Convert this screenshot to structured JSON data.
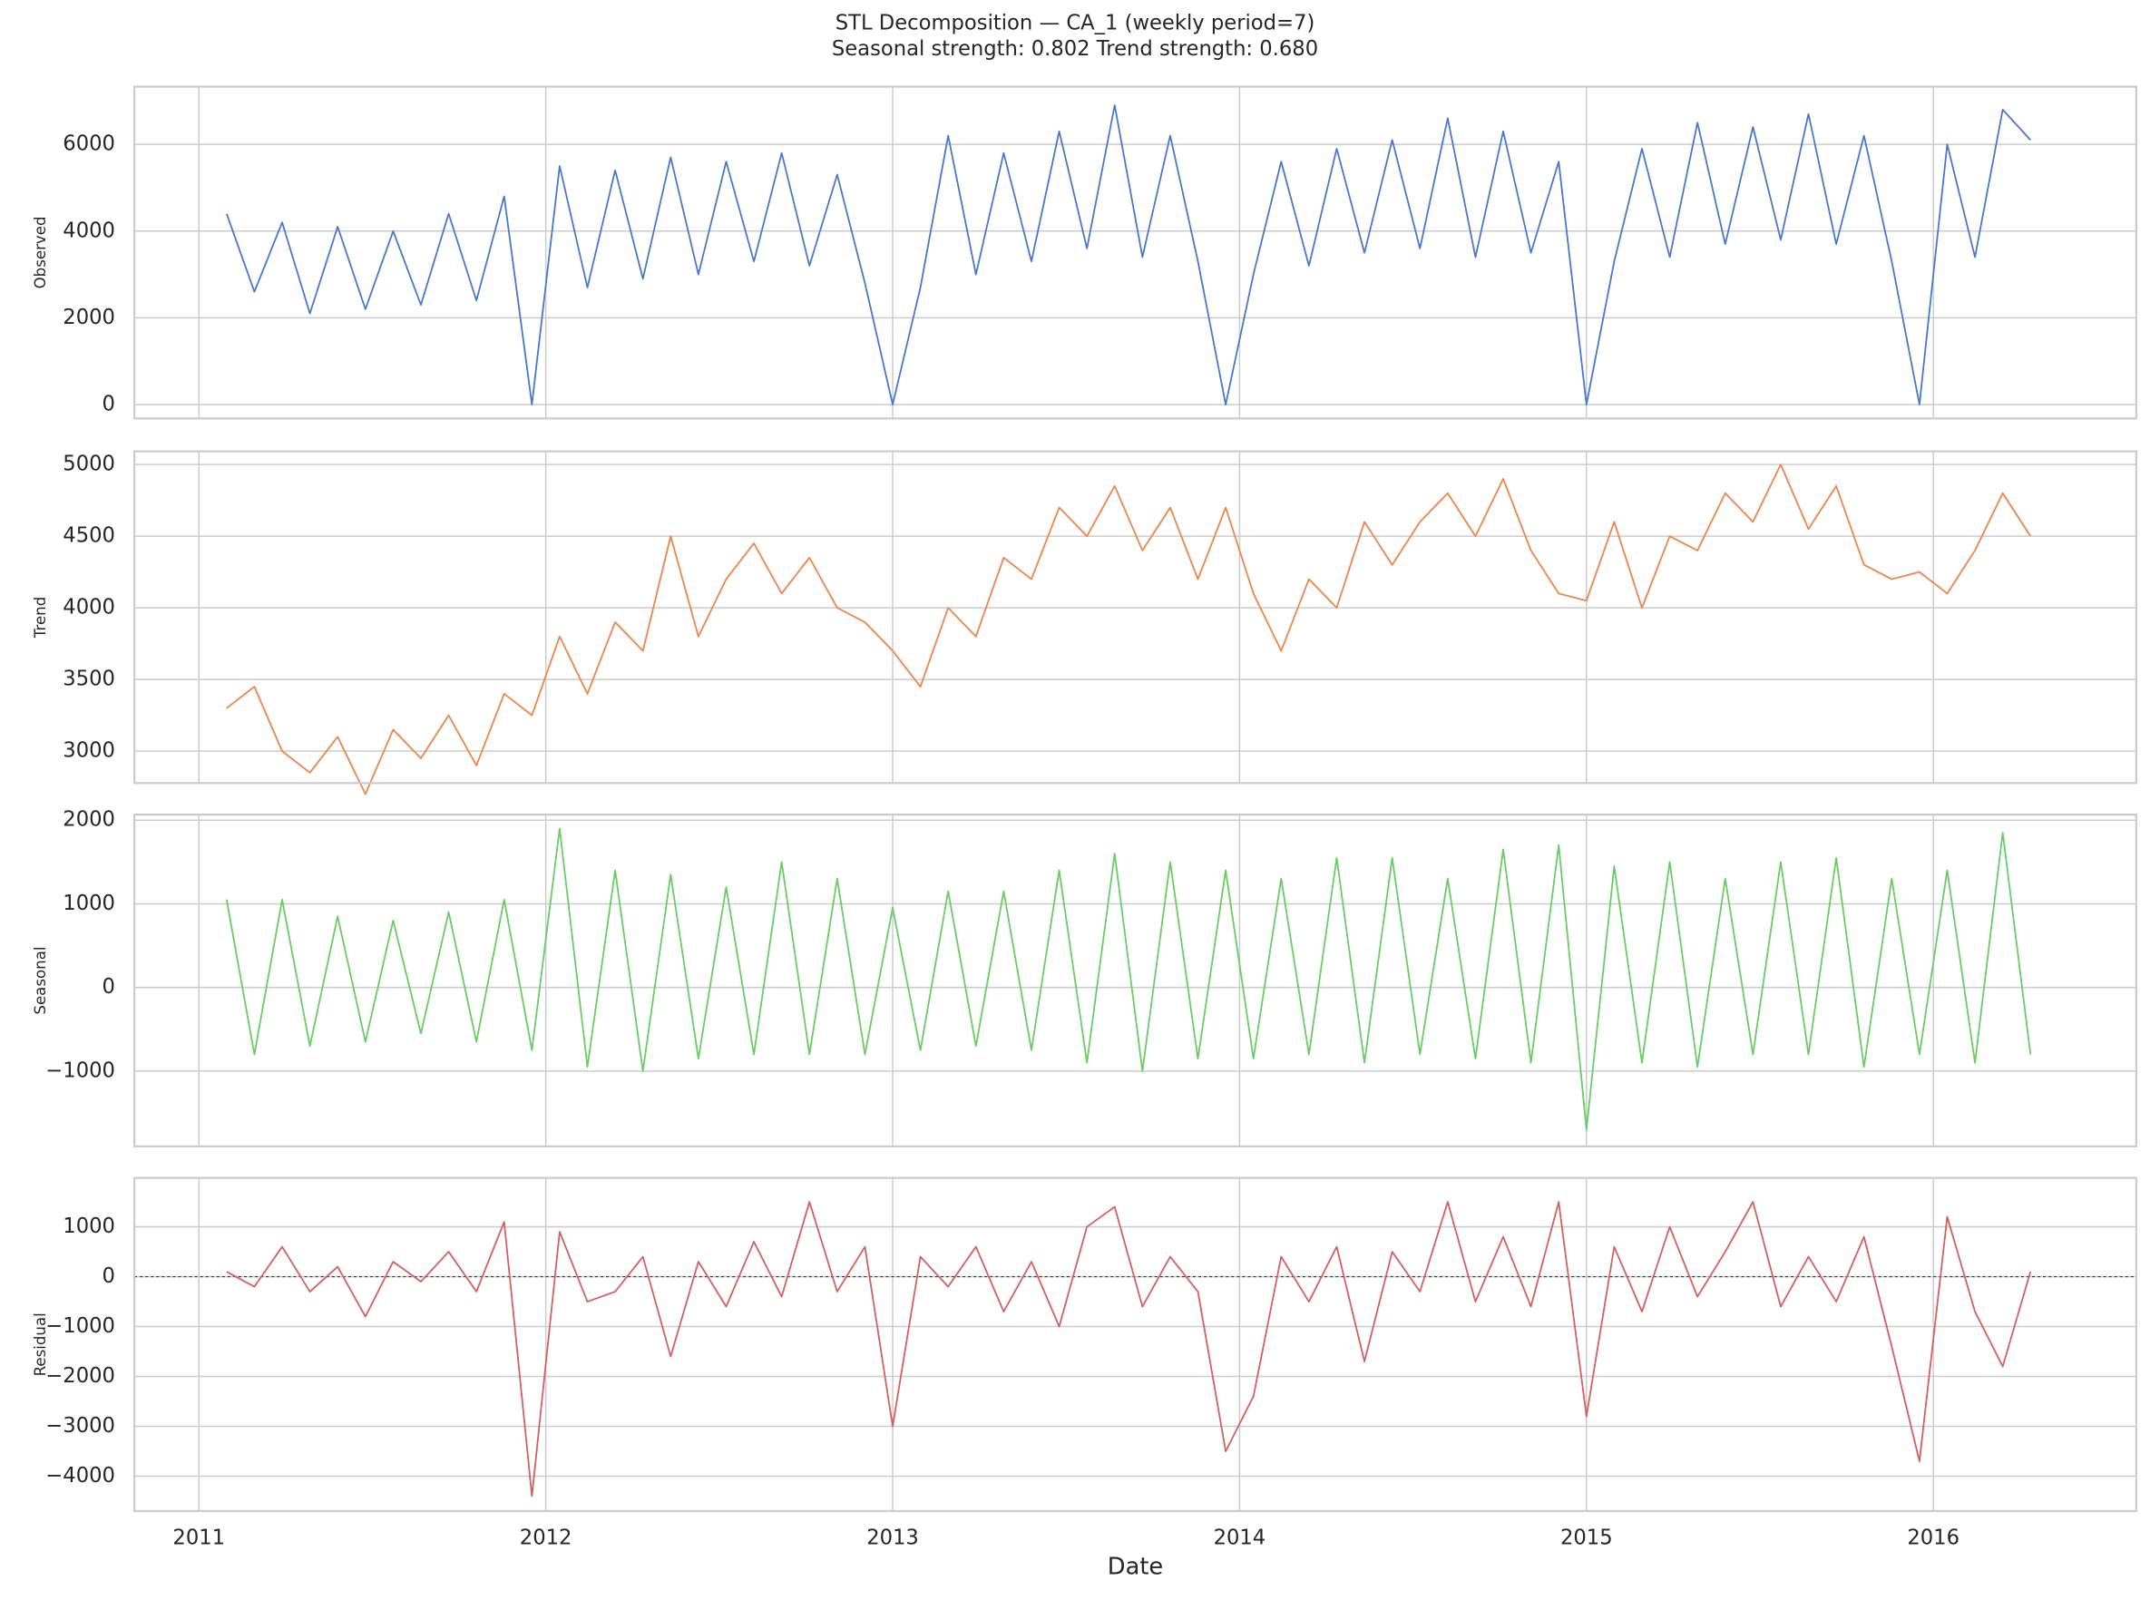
{
  "title": "STL Decomposition — CA_1 (weekly period=7)",
  "subtitle": "Seasonal strength: 0.802   Trend strength: 0.680",
  "chart_data": [
    {
      "type": "line",
      "ylabel": "Observed",
      "grid": true,
      "xlim": [
        2010.814,
        2016.585
      ],
      "xticks": [
        2011,
        2012,
        2013,
        2014,
        2015,
        2016
      ],
      "ylim": [
        -320,
        7330
      ],
      "yticks": [
        0,
        2000,
        4000,
        6000
      ],
      "x": [
        2011.08,
        2011.16,
        2011.24,
        2011.32,
        2011.4,
        2011.48,
        2011.56,
        2011.64,
        2011.72,
        2011.8,
        2011.88,
        2011.96,
        2012.04,
        2012.12,
        2012.2,
        2012.28,
        2012.36,
        2012.44,
        2012.52,
        2012.6,
        2012.68,
        2012.76,
        2012.84,
        2012.92,
        2013,
        2013.08,
        2013.16,
        2013.24,
        2013.32,
        2013.4,
        2013.48,
        2013.56,
        2013.64,
        2013.72,
        2013.8,
        2013.88,
        2013.96,
        2014.04,
        2014.12,
        2014.2,
        2014.28,
        2014.36,
        2014.44,
        2014.52,
        2014.6,
        2014.68,
        2014.76,
        2014.84,
        2014.92,
        2015,
        2015.08,
        2015.16,
        2015.24,
        2015.32,
        2015.4,
        2015.48,
        2015.56,
        2015.64,
        2015.72,
        2015.8,
        2015.88,
        2015.96,
        2016.04,
        2016.12,
        2016.2,
        2016.28
      ],
      "series": [
        {
          "name": "Observed",
          "color": "#4878d0",
          "values": [
            4400,
            2600,
            4200,
            2100,
            4100,
            2200,
            4000,
            2300,
            4400,
            2400,
            4800,
            0,
            5500,
            2700,
            5400,
            2900,
            5700,
            3000,
            5600,
            3300,
            5800,
            3200,
            5300,
            2800,
            0,
            2700,
            6200,
            3000,
            5800,
            3300,
            6300,
            3600,
            6900,
            3400,
            6200,
            3300,
            0,
            3000,
            5600,
            3200,
            5900,
            3500,
            6100,
            3600,
            6600,
            3400,
            6300,
            3500,
            5600,
            0,
            3300,
            5900,
            3400,
            6500,
            3700,
            6400,
            3800,
            6700,
            3700,
            6200,
            3300,
            0,
            6000,
            3400,
            6800,
            6100
          ]
        }
      ]
    },
    {
      "type": "line",
      "ylabel": "Trend",
      "grid": true,
      "xlim": [
        2010.814,
        2016.585
      ],
      "xticks": [
        2011,
        2012,
        2013,
        2014,
        2015,
        2016
      ],
      "ylim": [
        2777,
        5092
      ],
      "yticks": [
        3000,
        3500,
        4000,
        4500,
        5000
      ],
      "x": [
        2011.08,
        2011.16,
        2011.24,
        2011.32,
        2011.4,
        2011.48,
        2011.56,
        2011.64,
        2011.72,
        2011.8,
        2011.88,
        2011.96,
        2012.04,
        2012.12,
        2012.2,
        2012.28,
        2012.36,
        2012.44,
        2012.52,
        2012.6,
        2012.68,
        2012.76,
        2012.84,
        2012.92,
        2013,
        2013.08,
        2013.16,
        2013.24,
        2013.32,
        2013.4,
        2013.48,
        2013.56,
        2013.64,
        2013.72,
        2013.8,
        2013.88,
        2013.96,
        2014.04,
        2014.12,
        2014.2,
        2014.28,
        2014.36,
        2014.44,
        2014.52,
        2014.6,
        2014.68,
        2014.76,
        2014.84,
        2014.92,
        2015,
        2015.08,
        2015.16,
        2015.24,
        2015.32,
        2015.4,
        2015.48,
        2015.56,
        2015.64,
        2015.72,
        2015.8,
        2015.88,
        2015.96,
        2016.04,
        2016.12,
        2016.2,
        2016.28
      ],
      "series": [
        {
          "name": "Trend",
          "color": "#ee854a",
          "values": [
            3300,
            3450,
            3000,
            2850,
            3100,
            2700,
            3150,
            2950,
            3250,
            2900,
            3400,
            3250,
            3800,
            3400,
            3900,
            3700,
            4500,
            3800,
            4200,
            4450,
            4100,
            4350,
            4000,
            3900,
            3700,
            3450,
            4000,
            3800,
            4350,
            4200,
            4700,
            4500,
            4850,
            4400,
            4700,
            4200,
            4700,
            4100,
            3700,
            4200,
            4000,
            4600,
            4300,
            4600,
            4800,
            4500,
            4900,
            4400,
            4100,
            4050,
            4600,
            4000,
            4500,
            4400,
            4800,
            4600,
            5000,
            4550,
            4850,
            4300,
            4200,
            4250,
            4100,
            4400,
            4800,
            4500
          ]
        }
      ]
    },
    {
      "type": "line",
      "ylabel": "Seasonal",
      "grid": true,
      "xlim": [
        2010.814,
        2016.585
      ],
      "xticks": [
        2011,
        2012,
        2013,
        2014,
        2015,
        2016
      ],
      "ylim": [
        -1900,
        2066
      ],
      "yticks": [
        {
          "value": -1000,
          "label": "−1000"
        },
        0,
        1000,
        2000
      ],
      "x": [
        2011.08,
        2011.16,
        2011.24,
        2011.32,
        2011.4,
        2011.48,
        2011.56,
        2011.64,
        2011.72,
        2011.8,
        2011.88,
        2011.96,
        2012.04,
        2012.12,
        2012.2,
        2012.28,
        2012.36,
        2012.44,
        2012.52,
        2012.6,
        2012.68,
        2012.76,
        2012.84,
        2012.92,
        2013,
        2013.08,
        2013.16,
        2013.24,
        2013.32,
        2013.4,
        2013.48,
        2013.56,
        2013.64,
        2013.72,
        2013.8,
        2013.88,
        2013.96,
        2014.04,
        2014.12,
        2014.2,
        2014.28,
        2014.36,
        2014.44,
        2014.52,
        2014.6,
        2014.68,
        2014.76,
        2014.84,
        2014.92,
        2015,
        2015.08,
        2015.16,
        2015.24,
        2015.32,
        2015.4,
        2015.48,
        2015.56,
        2015.64,
        2015.72,
        2015.8,
        2015.88,
        2015.96,
        2016.04,
        2016.12,
        2016.2,
        2016.28
      ],
      "series": [
        {
          "name": "Seasonal",
          "color": "#6acc64",
          "values": [
            1050,
            -800,
            1050,
            -700,
            850,
            -650,
            800,
            -550,
            900,
            -650,
            1050,
            -750,
            1900,
            -950,
            1400,
            -1000,
            1350,
            -850,
            1200,
            -800,
            1500,
            -800,
            1300,
            -800,
            950,
            -750,
            1150,
            -700,
            1150,
            -750,
            1400,
            -900,
            1600,
            -1000,
            1500,
            -850,
            1400,
            -850,
            1300,
            -800,
            1550,
            -900,
            1550,
            -800,
            1300,
            -850,
            1650,
            -900,
            1700,
            -1700,
            1450,
            -900,
            1500,
            -950,
            1300,
            -800,
            1500,
            -800,
            1550,
            -950,
            1300,
            -800,
            1400,
            -900,
            1850,
            -800
          ]
        }
      ]
    },
    {
      "type": "line",
      "ylabel": "Residual",
      "xlabel": "Date",
      "grid": true,
      "hline": 0,
      "xlim": [
        2010.814,
        2016.585
      ],
      "xticks": [
        2011,
        2012,
        2013,
        2014,
        2015,
        2016
      ],
      "ylim": [
        -4700,
        1980
      ],
      "yticks": [
        {
          "value": -4000,
          "label": "−4000"
        },
        {
          "value": -3000,
          "label": "−3000"
        },
        {
          "value": -2000,
          "label": "−2000"
        },
        {
          "value": -1000,
          "label": "−1000"
        },
        0,
        1000
      ],
      "x": [
        2011.08,
        2011.16,
        2011.24,
        2011.32,
        2011.4,
        2011.48,
        2011.56,
        2011.64,
        2011.72,
        2011.8,
        2011.88,
        2011.96,
        2012.04,
        2012.12,
        2012.2,
        2012.28,
        2012.36,
        2012.44,
        2012.52,
        2012.6,
        2012.68,
        2012.76,
        2012.84,
        2012.92,
        2013,
        2013.08,
        2013.16,
        2013.24,
        2013.32,
        2013.4,
        2013.48,
        2013.56,
        2013.64,
        2013.72,
        2013.8,
        2013.88,
        2013.96,
        2014.04,
        2014.12,
        2014.2,
        2014.28,
        2014.36,
        2014.44,
        2014.52,
        2014.6,
        2014.68,
        2014.76,
        2014.84,
        2014.92,
        2015,
        2015.08,
        2015.16,
        2015.24,
        2015.32,
        2015.4,
        2015.48,
        2015.56,
        2015.64,
        2015.72,
        2015.8,
        2015.88,
        2015.96,
        2016.04,
        2016.12,
        2016.2,
        2016.28
      ],
      "series": [
        {
          "name": "Residual",
          "color": "#d65f5f",
          "values": [
            100,
            -200,
            600,
            -300,
            200,
            -800,
            300,
            -100,
            500,
            -300,
            1100,
            -4400,
            900,
            -500,
            -300,
            400,
            -1600,
            300,
            -600,
            700,
            -400,
            1500,
            -300,
            600,
            -3000,
            400,
            -200,
            600,
            -700,
            300,
            -1000,
            1000,
            1400,
            -600,
            400,
            -300,
            -3500,
            -2400,
            400,
            -500,
            600,
            -1700,
            500,
            -300,
            1500,
            -500,
            800,
            -600,
            1500,
            -2800,
            600,
            -700,
            1000,
            -400,
            500,
            1500,
            -600,
            400,
            -500,
            800,
            -1400,
            -3700,
            1200,
            -700,
            -1800,
            100
          ]
        }
      ]
    }
  ]
}
